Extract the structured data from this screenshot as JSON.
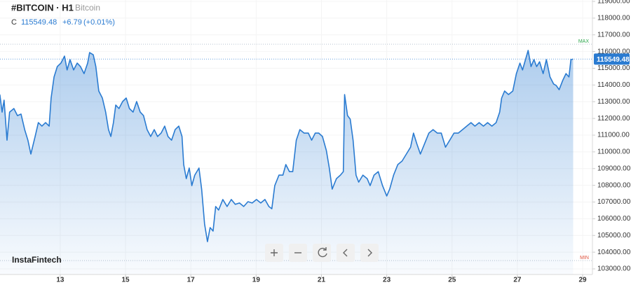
{
  "chart_data": {
    "type": "area",
    "title": "#BITCOIN · H1",
    "subtitle": "Bitcoin",
    "close_label": "C",
    "last_price": 115549.48,
    "change": "+6.79",
    "change_pct": "(+0.01%)",
    "watermark": "InstaFintech",
    "color": "#2a7bd1",
    "grid": true,
    "max_line": {
      "label": "MAX",
      "value": 116440
    },
    "min_line": {
      "label": "MIN",
      "value": 103500
    },
    "xlim": [
      11.155,
      29.3
    ],
    "xticks": [
      13,
      15,
      17,
      19,
      21,
      23,
      25,
      27,
      29
    ],
    "ylim": [
      102665,
      119084
    ],
    "yticks": [
      {
        "value": 103000,
        "label": "103000.00"
      },
      {
        "value": 104000,
        "label": "104000.00"
      },
      {
        "value": 105000,
        "label": "105000.00"
      },
      {
        "value": 106000,
        "label": "106000.00"
      },
      {
        "value": 107000,
        "label": "107000.00"
      },
      {
        "value": 108000,
        "label": "108000.00"
      },
      {
        "value": 109000,
        "label": "109000.00"
      },
      {
        "value": 110000,
        "label": "110000.00"
      },
      {
        "value": 111000,
        "label": "111000.00"
      },
      {
        "value": 112000,
        "label": "112000.00"
      },
      {
        "value": 113000,
        "label": "113000.00"
      },
      {
        "value": 114000,
        "label": "114000.00"
      },
      {
        "value": 115000,
        "label": "115000.00"
      },
      {
        "value": 116000,
        "label": "116000.00"
      },
      {
        "value": 117000,
        "label": "117000.00"
      },
      {
        "value": 118000,
        "label": "118000.00"
      },
      {
        "value": 119000,
        "label": "119000.00"
      }
    ],
    "x": [
      11.15,
      11.22,
      11.28,
      11.37,
      11.45,
      11.58,
      11.69,
      11.8,
      11.91,
      12.01,
      12.1,
      12.23,
      12.33,
      12.44,
      12.55,
      12.66,
      12.72,
      12.81,
      12.91,
      13.02,
      13.13,
      13.21,
      13.3,
      13.41,
      13.52,
      13.62,
      13.73,
      13.84,
      13.9,
      14.01,
      14.09,
      14.18,
      14.29,
      14.39,
      14.48,
      14.55,
      14.63,
      14.7,
      14.8,
      14.91,
      15.02,
      15.12,
      15.23,
      15.34,
      15.45,
      15.55,
      15.66,
      15.77,
      15.88,
      15.98,
      16.09,
      16.2,
      16.3,
      16.41,
      16.52,
      16.63,
      16.73,
      16.78,
      16.86,
      16.95,
      17.03,
      17.12,
      17.25,
      17.33,
      17.42,
      17.51,
      17.59,
      17.68,
      17.76,
      17.85,
      17.98,
      18.11,
      18.24,
      18.36,
      18.49,
      18.62,
      18.75,
      18.88,
      19.01,
      19.14,
      19.27,
      19.39,
      19.48,
      19.57,
      19.7,
      19.82,
      19.91,
      20.02,
      20.12,
      20.23,
      20.34,
      20.47,
      20.6,
      20.7,
      20.81,
      20.92,
      21.03,
      21.15,
      21.24,
      21.33,
      21.46,
      21.58,
      21.67,
      21.71,
      21.8,
      21.88,
      21.97,
      22.06,
      22.14,
      22.27,
      22.4,
      22.49,
      22.61,
      22.74,
      22.87,
      23.0,
      23.09,
      23.21,
      23.34,
      23.47,
      23.6,
      23.73,
      23.82,
      23.92,
      24.03,
      24.16,
      24.29,
      24.42,
      24.55,
      24.67,
      24.8,
      24.93,
      25.06,
      25.19,
      25.32,
      25.45,
      25.58,
      25.7,
      25.83,
      25.96,
      26.09,
      26.22,
      26.35,
      26.46,
      26.52,
      26.61,
      26.73,
      26.86,
      26.97,
      27.08,
      27.16,
      27.25,
      27.33,
      27.42,
      27.51,
      27.59,
      27.68,
      27.79,
      27.89,
      28.0,
      28.11,
      28.19,
      28.28,
      28.39,
      28.49,
      28.58,
      28.64,
      28.71
    ],
    "values": [
      113430,
      112380,
      113090,
      110700,
      112380,
      112590,
      112170,
      112260,
      111330,
      110700,
      109870,
      110920,
      111750,
      111540,
      111750,
      111540,
      113220,
      114480,
      115100,
      115310,
      115730,
      114900,
      115520,
      114900,
      115310,
      115100,
      114680,
      115310,
      115940,
      115810,
      115100,
      113640,
      113220,
      112380,
      111330,
      110920,
      111750,
      112800,
      112590,
      113010,
      113220,
      112590,
      112380,
      113010,
      112380,
      112170,
      111330,
      110920,
      111330,
      110920,
      111120,
      111540,
      110920,
      110700,
      111330,
      111540,
      110920,
      109240,
      108400,
      109030,
      107980,
      108610,
      109030,
      107770,
      105680,
      104630,
      105470,
      105260,
      106730,
      106520,
      107150,
      106730,
      107150,
      106860,
      106940,
      106730,
      107020,
      106940,
      107150,
      106940,
      107150,
      106730,
      106600,
      107980,
      108610,
      108610,
      109240,
      108820,
      108820,
      110700,
      111330,
      111120,
      111120,
      110700,
      111120,
      111120,
      110920,
      110080,
      109030,
      107770,
      108400,
      108610,
      108820,
      113430,
      112170,
      111960,
      110700,
      108610,
      108190,
      108610,
      108400,
      107980,
      108610,
      108820,
      107980,
      107360,
      107770,
      108610,
      109240,
      109450,
      109870,
      110280,
      111120,
      110490,
      109870,
      110490,
      111120,
      111330,
      111120,
      111120,
      110280,
      110700,
      111120,
      111120,
      111330,
      111540,
      111750,
      111540,
      111750,
      111540,
      111750,
      111540,
      111750,
      112380,
      113220,
      113640,
      113430,
      113640,
      114680,
      115310,
      114900,
      115520,
      116070,
      115100,
      115520,
      115100,
      115390,
      114680,
      115520,
      114480,
      114060,
      113970,
      113720,
      114270,
      114680,
      114480,
      115520,
      115549.48
    ]
  }
}
